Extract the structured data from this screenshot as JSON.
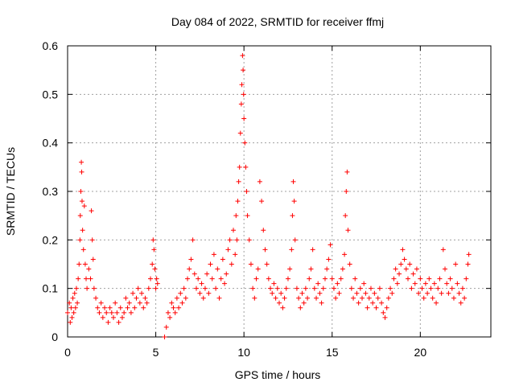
{
  "chart_data": {
    "type": "scatter",
    "title": "Day 084 of 2022, SRMTID for receiver ffmj",
    "xlabel": "GPS time / hours",
    "ylabel": "SRMTID / TECUs",
    "xlim": [
      0,
      24
    ],
    "ylim": [
      0,
      0.6
    ],
    "xticks": [
      0,
      5,
      10,
      15,
      20
    ],
    "yticks": [
      0,
      0.1,
      0.2,
      0.3,
      0.4,
      0.5,
      0.6
    ],
    "grid": true,
    "marker": "+",
    "series": [
      {
        "name": "SRMTID",
        "color": "#ff0000",
        "points": [
          [
            0.0,
            0.05
          ],
          [
            0.1,
            0.07
          ],
          [
            0.15,
            0.03
          ],
          [
            0.2,
            0.06
          ],
          [
            0.25,
            0.04
          ],
          [
            0.3,
            0.08
          ],
          [
            0.35,
            0.05
          ],
          [
            0.4,
            0.09
          ],
          [
            0.45,
            0.06
          ],
          [
            0.5,
            0.1
          ],
          [
            0.55,
            0.07
          ],
          [
            0.6,
            0.12
          ],
          [
            0.65,
            0.15
          ],
          [
            0.7,
            0.2
          ],
          [
            0.72,
            0.25
          ],
          [
            0.75,
            0.3
          ],
          [
            0.78,
            0.36
          ],
          [
            0.8,
            0.34
          ],
          [
            0.82,
            0.28
          ],
          [
            0.85,
            0.22
          ],
          [
            0.9,
            0.18
          ],
          [
            0.95,
            0.27
          ],
          [
            1.0,
            0.15
          ],
          [
            1.05,
            0.12
          ],
          [
            1.1,
            0.1
          ],
          [
            1.2,
            0.14
          ],
          [
            1.3,
            0.12
          ],
          [
            1.35,
            0.26
          ],
          [
            1.4,
            0.2
          ],
          [
            1.45,
            0.16
          ],
          [
            1.5,
            0.1
          ],
          [
            1.6,
            0.08
          ],
          [
            1.7,
            0.06
          ],
          [
            1.8,
            0.05
          ],
          [
            1.9,
            0.07
          ],
          [
            2.0,
            0.04
          ],
          [
            2.1,
            0.06
          ],
          [
            2.2,
            0.05
          ],
          [
            2.3,
            0.03
          ],
          [
            2.4,
            0.06
          ],
          [
            2.5,
            0.05
          ],
          [
            2.6,
            0.04
          ],
          [
            2.7,
            0.07
          ],
          [
            2.8,
            0.05
          ],
          [
            2.9,
            0.03
          ],
          [
            3.0,
            0.06
          ],
          [
            3.1,
            0.04
          ],
          [
            3.2,
            0.05
          ],
          [
            3.3,
            0.08
          ],
          [
            3.4,
            0.06
          ],
          [
            3.5,
            0.07
          ],
          [
            3.6,
            0.05
          ],
          [
            3.7,
            0.09
          ],
          [
            3.8,
            0.06
          ],
          [
            3.9,
            0.08
          ],
          [
            4.0,
            0.1
          ],
          [
            4.1,
            0.07
          ],
          [
            4.2,
            0.09
          ],
          [
            4.3,
            0.06
          ],
          [
            4.4,
            0.08
          ],
          [
            4.5,
            0.07
          ],
          [
            4.6,
            0.1
          ],
          [
            4.7,
            0.12
          ],
          [
            4.8,
            0.15
          ],
          [
            4.85,
            0.2
          ],
          [
            4.9,
            0.18
          ],
          [
            4.95,
            0.14
          ],
          [
            5.0,
            0.1
          ],
          [
            5.05,
            0.12
          ],
          [
            5.1,
            0.11
          ],
          [
            5.5,
            0.0
          ],
          [
            5.6,
            0.02
          ],
          [
            5.7,
            0.05
          ],
          [
            5.8,
            0.04
          ],
          [
            5.9,
            0.07
          ],
          [
            6.0,
            0.06
          ],
          [
            6.1,
            0.05
          ],
          [
            6.2,
            0.08
          ],
          [
            6.3,
            0.06
          ],
          [
            6.4,
            0.09
          ],
          [
            6.5,
            0.07
          ],
          [
            6.6,
            0.1
          ],
          [
            6.7,
            0.08
          ],
          [
            6.8,
            0.12
          ],
          [
            6.9,
            0.14
          ],
          [
            7.0,
            0.16
          ],
          [
            7.1,
            0.2
          ],
          [
            7.2,
            0.13
          ],
          [
            7.3,
            0.1
          ],
          [
            7.4,
            0.12
          ],
          [
            7.5,
            0.09
          ],
          [
            7.6,
            0.11
          ],
          [
            7.7,
            0.08
          ],
          [
            7.8,
            0.1
          ],
          [
            7.9,
            0.13
          ],
          [
            8.0,
            0.09
          ],
          [
            8.1,
            0.15
          ],
          [
            8.2,
            0.12
          ],
          [
            8.3,
            0.17
          ],
          [
            8.4,
            0.1
          ],
          [
            8.5,
            0.14
          ],
          [
            8.6,
            0.08
          ],
          [
            8.7,
            0.12
          ],
          [
            8.8,
            0.16
          ],
          [
            8.9,
            0.11
          ],
          [
            9.0,
            0.13
          ],
          [
            9.1,
            0.18
          ],
          [
            9.2,
            0.2
          ],
          [
            9.3,
            0.15
          ],
          [
            9.4,
            0.22
          ],
          [
            9.5,
            0.17
          ],
          [
            9.55,
            0.25
          ],
          [
            9.6,
            0.2
          ],
          [
            9.65,
            0.28
          ],
          [
            9.7,
            0.32
          ],
          [
            9.75,
            0.35
          ],
          [
            9.8,
            0.42
          ],
          [
            9.85,
            0.48
          ],
          [
            9.88,
            0.52
          ],
          [
            9.92,
            0.58
          ],
          [
            9.95,
            0.55
          ],
          [
            9.98,
            0.5
          ],
          [
            10.0,
            0.45
          ],
          [
            10.05,
            0.4
          ],
          [
            10.1,
            0.35
          ],
          [
            10.15,
            0.3
          ],
          [
            10.2,
            0.25
          ],
          [
            10.3,
            0.2
          ],
          [
            10.4,
            0.15
          ],
          [
            10.5,
            0.1
          ],
          [
            10.6,
            0.08
          ],
          [
            10.7,
            0.12
          ],
          [
            10.8,
            0.14
          ],
          [
            10.9,
            0.32
          ],
          [
            11.0,
            0.28
          ],
          [
            11.1,
            0.22
          ],
          [
            11.2,
            0.18
          ],
          [
            11.3,
            0.15
          ],
          [
            11.4,
            0.12
          ],
          [
            11.5,
            0.1
          ],
          [
            11.6,
            0.09
          ],
          [
            11.7,
            0.11
          ],
          [
            11.8,
            0.08
          ],
          [
            11.9,
            0.1
          ],
          [
            12.0,
            0.07
          ],
          [
            12.1,
            0.09
          ],
          [
            12.2,
            0.06
          ],
          [
            12.3,
            0.08
          ],
          [
            12.4,
            0.1
          ],
          [
            12.5,
            0.12
          ],
          [
            12.6,
            0.14
          ],
          [
            12.7,
            0.18
          ],
          [
            12.75,
            0.25
          ],
          [
            12.8,
            0.32
          ],
          [
            12.85,
            0.28
          ],
          [
            12.9,
            0.2
          ],
          [
            13.0,
            0.1
          ],
          [
            13.1,
            0.08
          ],
          [
            13.2,
            0.06
          ],
          [
            13.3,
            0.09
          ],
          [
            13.4,
            0.07
          ],
          [
            13.5,
            0.1
          ],
          [
            13.6,
            0.08
          ],
          [
            13.7,
            0.12
          ],
          [
            13.8,
            0.14
          ],
          [
            13.9,
            0.18
          ],
          [
            14.0,
            0.1
          ],
          [
            14.1,
            0.08
          ],
          [
            14.2,
            0.11
          ],
          [
            14.3,
            0.09
          ],
          [
            14.4,
            0.07
          ],
          [
            14.5,
            0.1
          ],
          [
            14.6,
            0.12
          ],
          [
            14.7,
            0.14
          ],
          [
            14.8,
            0.16
          ],
          [
            14.9,
            0.19
          ],
          [
            15.0,
            0.12
          ],
          [
            15.1,
            0.1
          ],
          [
            15.2,
            0.08
          ],
          [
            15.3,
            0.11
          ],
          [
            15.4,
            0.09
          ],
          [
            15.5,
            0.12
          ],
          [
            15.6,
            0.14
          ],
          [
            15.7,
            0.17
          ],
          [
            15.75,
            0.25
          ],
          [
            15.8,
            0.3
          ],
          [
            15.85,
            0.34
          ],
          [
            15.9,
            0.22
          ],
          [
            16.0,
            0.15
          ],
          [
            16.1,
            0.1
          ],
          [
            16.2,
            0.08
          ],
          [
            16.3,
            0.12
          ],
          [
            16.4,
            0.09
          ],
          [
            16.5,
            0.07
          ],
          [
            16.6,
            0.1
          ],
          [
            16.7,
            0.08
          ],
          [
            16.8,
            0.11
          ],
          [
            16.9,
            0.09
          ],
          [
            17.0,
            0.06
          ],
          [
            17.1,
            0.08
          ],
          [
            17.2,
            0.1
          ],
          [
            17.3,
            0.07
          ],
          [
            17.4,
            0.09
          ],
          [
            17.5,
            0.06
          ],
          [
            17.6,
            0.08
          ],
          [
            17.7,
            0.1
          ],
          [
            17.8,
            0.07
          ],
          [
            17.9,
            0.05
          ],
          [
            18.0,
            0.04
          ],
          [
            18.1,
            0.06
          ],
          [
            18.2,
            0.08
          ],
          [
            18.3,
            0.1
          ],
          [
            18.4,
            0.09
          ],
          [
            18.5,
            0.12
          ],
          [
            18.6,
            0.14
          ],
          [
            18.7,
            0.11
          ],
          [
            18.8,
            0.13
          ],
          [
            18.9,
            0.15
          ],
          [
            19.0,
            0.18
          ],
          [
            19.1,
            0.16
          ],
          [
            19.2,
            0.14
          ],
          [
            19.3,
            0.12
          ],
          [
            19.4,
            0.15
          ],
          [
            19.5,
            0.1
          ],
          [
            19.6,
            0.13
          ],
          [
            19.7,
            0.11
          ],
          [
            19.8,
            0.14
          ],
          [
            19.9,
            0.09
          ],
          [
            20.0,
            0.12
          ],
          [
            20.1,
            0.1
          ],
          [
            20.2,
            0.08
          ],
          [
            20.3,
            0.11
          ],
          [
            20.4,
            0.09
          ],
          [
            20.5,
            0.12
          ],
          [
            20.6,
            0.1
          ],
          [
            20.7,
            0.08
          ],
          [
            20.8,
            0.11
          ],
          [
            20.9,
            0.07
          ],
          [
            21.0,
            0.1
          ],
          [
            21.1,
            0.12
          ],
          [
            21.2,
            0.09
          ],
          [
            21.3,
            0.18
          ],
          [
            21.4,
            0.14
          ],
          [
            21.5,
            0.11
          ],
          [
            21.6,
            0.09
          ],
          [
            21.7,
            0.12
          ],
          [
            21.8,
            0.1
          ],
          [
            21.9,
            0.08
          ],
          [
            22.0,
            0.15
          ],
          [
            22.1,
            0.11
          ],
          [
            22.2,
            0.09
          ],
          [
            22.3,
            0.07
          ],
          [
            22.4,
            0.1
          ],
          [
            22.5,
            0.08
          ],
          [
            22.6,
            0.12
          ],
          [
            22.7,
            0.15
          ],
          [
            22.75,
            0.17
          ]
        ]
      }
    ]
  }
}
